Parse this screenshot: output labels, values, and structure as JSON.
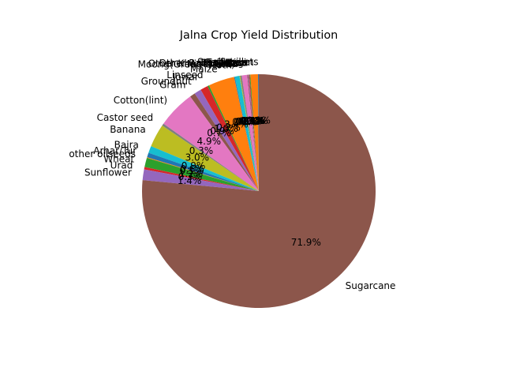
{
  "chart_data": {
    "type": "pie",
    "title": "Jalna Crop Yield Distribution",
    "start_angle_deg": 90,
    "direction": "counterclockwise",
    "colors": [
      "#1f77b4",
      "#ff7f0e",
      "#2ca02c",
      "#d62728",
      "#9467bd",
      "#8c564b",
      "#e377c2",
      "#7f7f7f",
      "#bcbd22",
      "#17becf"
    ],
    "slices": [
      {
        "label": "Small millets",
        "value": 0.1,
        "pct_label": "0.1%"
      },
      {
        "label": "Soyabean",
        "value": 1.0,
        "pct_label": "1.0%"
      },
      {
        "label": "Safflower",
        "value": 0.1,
        "pct_label": "0.1%"
      },
      {
        "label": "Sesamum",
        "value": 0.1,
        "pct_label": "0.1%"
      },
      {
        "label": "Rice",
        "value": 0.1,
        "pct_label": "0.1%"
      },
      {
        "label": "Ragi",
        "value": 0.1,
        "pct_label": "0.1%"
      },
      {
        "label": "Other Rabi pulses",
        "value": 0.7,
        "pct_label": "0.7%"
      },
      {
        "label": "Other Kharif pulses",
        "value": 0.2,
        "pct_label": "0.2%"
      },
      {
        "label": "Niger seed",
        "value": 0.1,
        "pct_label": "0.1%"
      },
      {
        "label": "Moong(Green Gram)",
        "value": 0.6,
        "pct_label": "0.6%"
      },
      {
        "label": "Moth",
        "value": 0.1,
        "pct_label": "0.1%"
      },
      {
        "label": "Maize",
        "value": 3.4,
        "pct_label": "3.4%"
      },
      {
        "label": "Linseed",
        "value": 0.2,
        "pct_label": "0.2%"
      },
      {
        "label": "Jowar",
        "value": 1.0,
        "pct_label": "1.0%"
      },
      {
        "label": "Groundnut",
        "value": 0.9,
        "pct_label": "0.9%"
      },
      {
        "label": "Gram",
        "value": 0.7,
        "pct_label": "0.7%"
      },
      {
        "label": "Cotton(lint)",
        "value": 4.9,
        "pct_label": "4.9%"
      },
      {
        "label": "Castor seed",
        "value": 0.3,
        "pct_label": "0.3%"
      },
      {
        "label": "Banana",
        "value": 3.0,
        "pct_label": "3.0%"
      },
      {
        "label": "Bajra",
        "value": 0.9,
        "pct_label": "0.9%"
      },
      {
        "label": "Arhar/Tur",
        "value": 0.6,
        "pct_label": "0.6%"
      },
      {
        "label": "other oilseeds",
        "value": 0.1,
        "pct_label": "0.1%"
      },
      {
        "label": "Wheat",
        "value": 1.2,
        "pct_label": "1.2%"
      },
      {
        "label": "Urad",
        "value": 0.3,
        "pct_label": "0.3%"
      },
      {
        "label": "Sunflower",
        "value": 1.4,
        "pct_label": "1.4%"
      },
      {
        "label": "Sugarcane",
        "value": 71.9,
        "pct_label": "71.9%"
      }
    ]
  }
}
